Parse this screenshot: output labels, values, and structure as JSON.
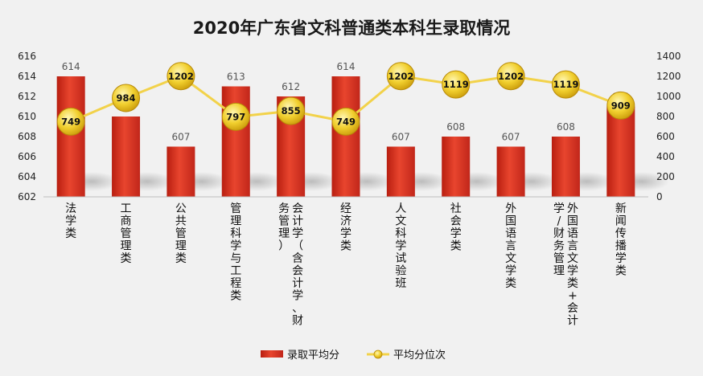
{
  "chart_data": {
    "type": "bar",
    "title": "2020年广东省文科普通类本科生录取情况",
    "categories": [
      "法学类",
      "工商管理类",
      "公共管理类",
      "管理科学与工程类",
      "会计学（含会计学、财务管理）",
      "经济学类",
      "人文科学试验班",
      "社会学类",
      "外国语言文学类",
      "外国语言文学类+会计学/财务管理",
      "新闻传播学类"
    ],
    "category_lines": [
      [
        "法学类"
      ],
      [
        "工商管理类"
      ],
      [
        "公共管理类"
      ],
      [
        "管理科学与工程类"
      ],
      [
        "会计学（含会计学、财",
        "务管理）"
      ],
      [
        "经济学类"
      ],
      [
        "人文科学试验班"
      ],
      [
        "社会学类"
      ],
      [
        "外国语言文学类"
      ],
      [
        "外国语言文学类+会计",
        "学/财务管理"
      ],
      [
        "新闻传播学类"
      ]
    ],
    "series": [
      {
        "name": "录取平均分",
        "type": "bar",
        "axis": "left",
        "color": "#d9311f",
        "values": [
          614,
          610,
          607,
          613,
          612,
          614,
          607,
          608,
          607,
          608,
          611
        ]
      },
      {
        "name": "平均分位次",
        "type": "line",
        "axis": "right",
        "color": "#f2d24a",
        "values": [
          749,
          984,
          1202,
          797,
          855,
          749,
          1202,
          1119,
          1202,
          1119,
          909
        ]
      }
    ],
    "y_left": {
      "min": 602,
      "max": 616,
      "ticks": [
        602,
        604,
        606,
        608,
        610,
        612,
        614,
        616
      ]
    },
    "y_right": {
      "min": 0,
      "max": 1400,
      "ticks": [
        0,
        200,
        400,
        600,
        800,
        1000,
        1200,
        1400
      ]
    },
    "legend": {
      "position": "bottom"
    },
    "grid": false
  }
}
